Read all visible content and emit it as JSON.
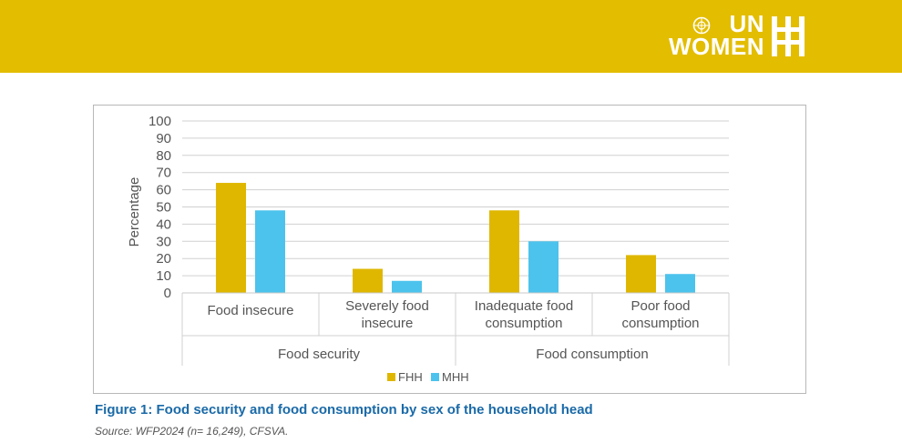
{
  "branding": {
    "logo_line1": "UN",
    "logo_line2": "WOMEN",
    "banner_color": "#e3bd00"
  },
  "figure": {
    "caption": "Figure 1: Food security and food consumption by sex of the household head",
    "source": "Source: WFP2024 (n= 16,249), CFSVA."
  },
  "chart_data": {
    "type": "bar",
    "title": "",
    "ylabel": "Percentage",
    "xlabel": "",
    "ylim": [
      0,
      100
    ],
    "yticks": [
      0,
      10,
      20,
      30,
      40,
      50,
      60,
      70,
      80,
      90,
      100
    ],
    "grid": true,
    "legend_position": "bottom-center",
    "categories": [
      [
        "Food insecure"
      ],
      [
        "Severely food",
        "insecure"
      ],
      [
        "Inadequate food",
        "consumption"
      ],
      [
        "Poor food",
        "consumption"
      ]
    ],
    "groups": [
      {
        "label": "Food security",
        "span": 2
      },
      {
        "label": "Food consumption",
        "span": 2
      }
    ],
    "series": [
      {
        "name": "FHH",
        "color": "#dfb700",
        "values": [
          64,
          14,
          48,
          22
        ]
      },
      {
        "name": "MHH",
        "color": "#4cc3ec",
        "values": [
          48,
          7,
          30,
          11
        ]
      }
    ]
  }
}
